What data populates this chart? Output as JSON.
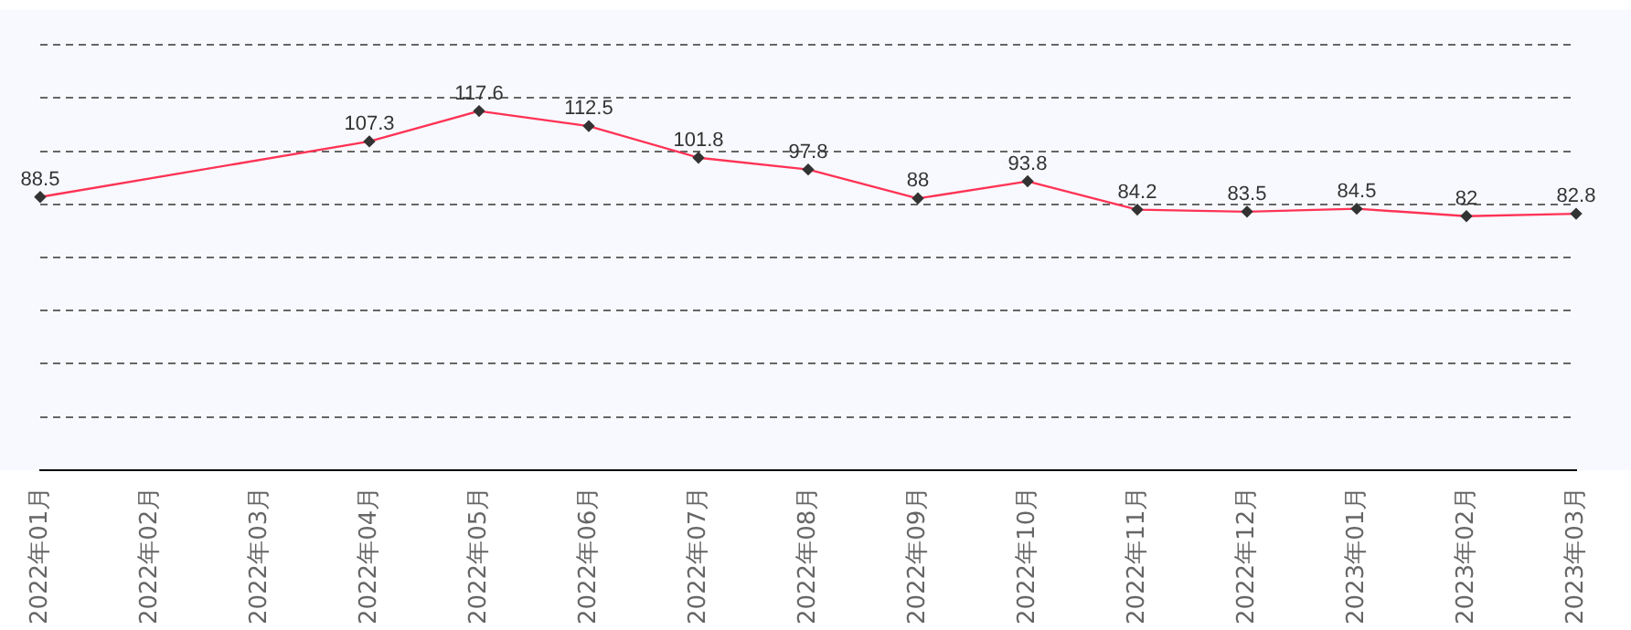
{
  "chart_data": {
    "type": "line",
    "categories": [
      "2022年01月",
      "2022年02月",
      "2022年03月",
      "2022年04月",
      "2022年05月",
      "2022年06月",
      "2022年07月",
      "2022年08月",
      "2022年09月",
      "2022年10月",
      "2022年11月",
      "2022年12月",
      "2023年01月",
      "2023年02月",
      "2023年03月"
    ],
    "series": [
      {
        "color": "#ff3355",
        "values": [
          88.5,
          null,
          null,
          107.3,
          117.6,
          112.5,
          101.8,
          97.8,
          88,
          93.8,
          84.2,
          83.5,
          84.5,
          82,
          82.8
        ]
      }
    ],
    "ylim": [
      -4,
      152
    ],
    "yticks": [
      {
        "value": 14,
        "label": null
      },
      {
        "value": 32,
        "label": null
      },
      {
        "value": 50,
        "label": null
      },
      {
        "value": 68,
        "label": null
      },
      {
        "value": 86,
        "label": null
      },
      {
        "value": 104,
        "label": null
      },
      {
        "value": 122,
        "label": null
      },
      {
        "value": 140,
        "label": null
      }
    ],
    "tick_labels": "x",
    "grid": "y",
    "line_style": "solid",
    "marker": "diamond",
    "data_labels": true,
    "legend": false
  }
}
